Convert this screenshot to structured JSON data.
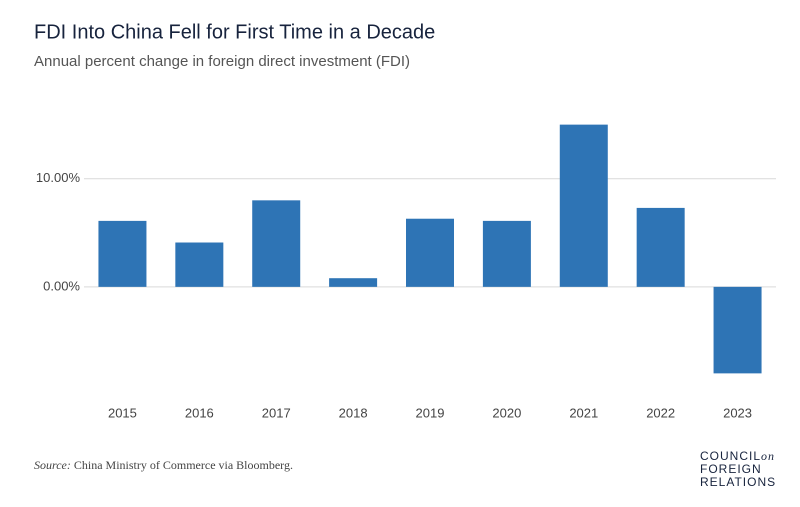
{
  "chart_data": {
    "type": "bar",
    "title": "FDI Into China Fell for First Time in a Decade",
    "subtitle": "Annual percent change in foreign direct investment (FDI)",
    "categories": [
      "2015",
      "2016",
      "2017",
      "2018",
      "2019",
      "2020",
      "2021",
      "2022",
      "2023"
    ],
    "values": [
      6.1,
      4.1,
      8.0,
      0.8,
      6.3,
      6.1,
      15.0,
      7.3,
      -8.0
    ],
    "color": "#2e74b5",
    "ylim": [
      -10,
      17
    ],
    "yticks": [
      {
        "value": 0,
        "label": "0.00%"
      },
      {
        "value": 10,
        "label": "10.00%"
      }
    ],
    "grid": true,
    "source_label": "Source:",
    "source": "China Ministry of Commerce via Bloomberg.",
    "logo": [
      "COUNCIL",
      "on",
      "FOREIGN",
      "RELATIONS"
    ]
  }
}
